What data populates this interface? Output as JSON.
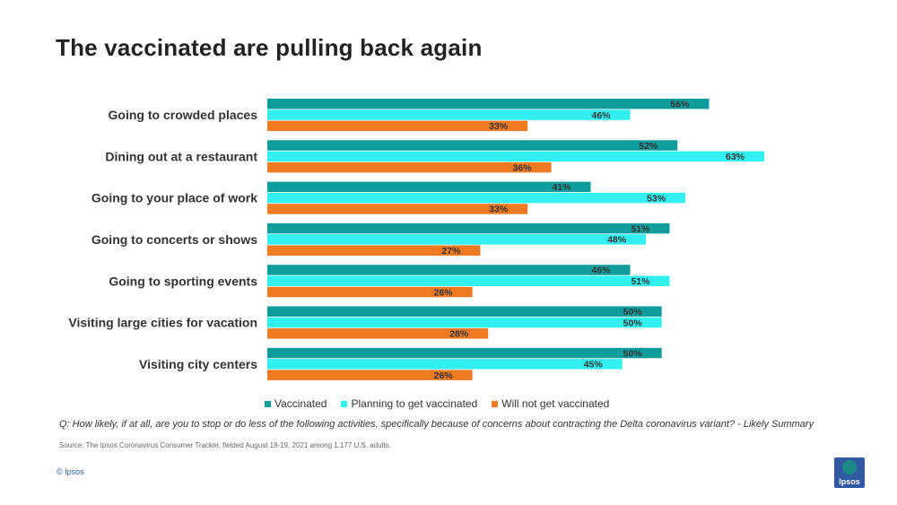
{
  "page": {
    "title": "The vaccinated are pulling back again",
    "question": "Q: How likely, if at all, are you to stop or do less of the following activities, specifically because of concerns about contracting the Delta coronavirus variant? - Likely Summary",
    "source": "Source: The Ipsos Coronavirus Consumer Tracker, fielded August 18-19, 2021 among 1,177 U.S. adults.",
    "copyright": "© Ipsos",
    "logo_text": "Ipsos"
  },
  "chart_data": {
    "type": "bar",
    "orientation": "horizontal",
    "categories": [
      "Going to crowded places",
      "Dining out at a restaurant",
      "Going to your place of work",
      "Going to concerts or shows",
      "Going to sporting events",
      "Visiting large cities for vacation",
      "Visiting city centers"
    ],
    "series": [
      {
        "name": "Vaccinated",
        "color": "#0e9c9c",
        "values": [
          56,
          52,
          41,
          51,
          46,
          50,
          50
        ]
      },
      {
        "name": "Planning to get vaccinated",
        "color": "#33f0f0",
        "values": [
          46,
          63,
          53,
          48,
          51,
          50,
          45
        ]
      },
      {
        "name": "Will not get vaccinated",
        "color": "#ee7a22",
        "values": [
          33,
          36,
          33,
          27,
          26,
          28,
          26
        ]
      }
    ],
    "value_suffix": "%",
    "legend_position": "bottom",
    "grid": false,
    "xlim": [
      0,
      63
    ]
  }
}
